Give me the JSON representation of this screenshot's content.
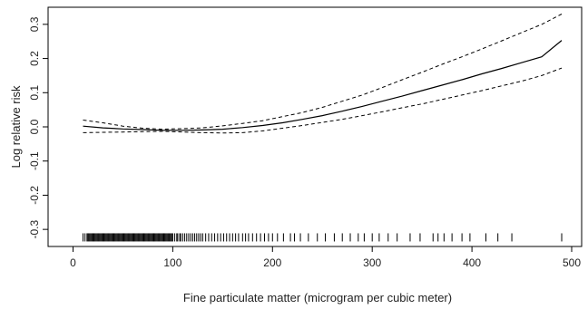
{
  "chart_data": {
    "type": "line",
    "title": "",
    "xlabel": "Fine particulate matter (microgram per cubic meter)",
    "ylabel": "Log relative risk",
    "xlim": [
      -25,
      510
    ],
    "ylim": [
      -0.35,
      0.35
    ],
    "x_ticks": [
      0,
      100,
      200,
      300,
      400,
      500
    ],
    "x_tick_labels": [
      "0",
      "100",
      "200",
      "300",
      "400",
      "500"
    ],
    "y_ticks": [
      -0.3,
      -0.2,
      -0.1,
      0.0,
      0.1,
      0.2,
      0.3
    ],
    "y_tick_labels": [
      "-0.3",
      "-0.2",
      "-0.1",
      "0.0",
      "0.1",
      "0.2",
      "0.3"
    ],
    "grid": false,
    "legend": "none",
    "colors": {
      "line": "#000000",
      "axis": "#000000"
    },
    "series": [
      {
        "style": "solid",
        "x": [
          10,
          30,
          50,
          70,
          90,
          110,
          130,
          150,
          170,
          190,
          210,
          230,
          250,
          270,
          290,
          310,
          330,
          350,
          370,
          390,
          410,
          430,
          450,
          470,
          490
        ],
        "y": [
          0.002,
          -0.003,
          -0.006,
          -0.008,
          -0.01,
          -0.01,
          -0.009,
          -0.007,
          -0.002,
          0.004,
          0.012,
          0.022,
          0.033,
          0.046,
          0.06,
          0.075,
          0.09,
          0.106,
          0.122,
          0.138,
          0.155,
          0.171,
          0.188,
          0.205,
          0.253
        ]
      },
      {
        "style": "dashed",
        "x": [
          10,
          30,
          50,
          70,
          90,
          110,
          130,
          150,
          170,
          190,
          210,
          230,
          250,
          270,
          290,
          310,
          330,
          350,
          370,
          390,
          410,
          430,
          450,
          470,
          490
        ],
        "y": [
          0.02,
          0.012,
          0.002,
          -0.004,
          -0.007,
          -0.005,
          -0.003,
          0.003,
          0.01,
          0.018,
          0.03,
          0.042,
          0.057,
          0.075,
          0.093,
          0.115,
          0.138,
          0.16,
          0.183,
          0.205,
          0.228,
          0.252,
          0.276,
          0.3,
          0.33
        ]
      },
      {
        "style": "dashed",
        "x": [
          10,
          30,
          50,
          70,
          90,
          110,
          130,
          150,
          170,
          190,
          210,
          230,
          250,
          270,
          290,
          310,
          330,
          350,
          370,
          390,
          410,
          430,
          450,
          470,
          490
        ],
        "y": [
          -0.017,
          -0.016,
          -0.015,
          -0.014,
          -0.013,
          -0.015,
          -0.017,
          -0.018,
          -0.017,
          -0.012,
          -0.004,
          0.004,
          0.013,
          0.022,
          0.033,
          0.044,
          0.056,
          0.067,
          0.08,
          0.093,
          0.106,
          0.12,
          0.134,
          0.15,
          0.172
        ]
      }
    ],
    "rug": [
      10,
      12,
      14,
      15,
      16,
      17,
      18,
      19,
      20,
      21,
      22,
      23,
      24,
      25,
      26,
      27,
      28,
      29,
      30,
      31,
      32,
      33,
      34,
      35,
      36,
      37,
      38,
      39,
      40,
      41,
      42,
      43,
      44,
      45,
      46,
      47,
      48,
      49,
      50,
      51,
      52,
      53,
      54,
      55,
      56,
      57,
      58,
      59,
      60,
      61,
      62,
      63,
      64,
      65,
      66,
      67,
      68,
      69,
      70,
      71,
      72,
      73,
      74,
      75,
      76,
      77,
      78,
      79,
      80,
      81,
      82,
      83,
      84,
      85,
      86,
      87,
      88,
      89,
      90,
      91,
      92,
      93,
      94,
      95,
      96,
      97,
      98,
      99,
      100,
      102,
      104,
      105,
      107,
      108,
      110,
      112,
      114,
      116,
      118,
      120,
      122,
      124,
      126,
      128,
      130,
      133,
      136,
      139,
      142,
      145,
      148,
      151,
      154,
      157,
      160,
      163,
      166,
      170,
      173,
      176,
      180,
      184,
      188,
      192,
      196,
      200,
      205,
      211,
      218,
      222,
      228,
      236,
      245,
      253,
      262,
      270,
      278,
      286,
      292,
      300,
      307,
      316,
      325,
      338,
      348,
      361,
      366,
      372,
      380,
      390,
      398,
      414,
      426,
      440,
      490
    ]
  }
}
